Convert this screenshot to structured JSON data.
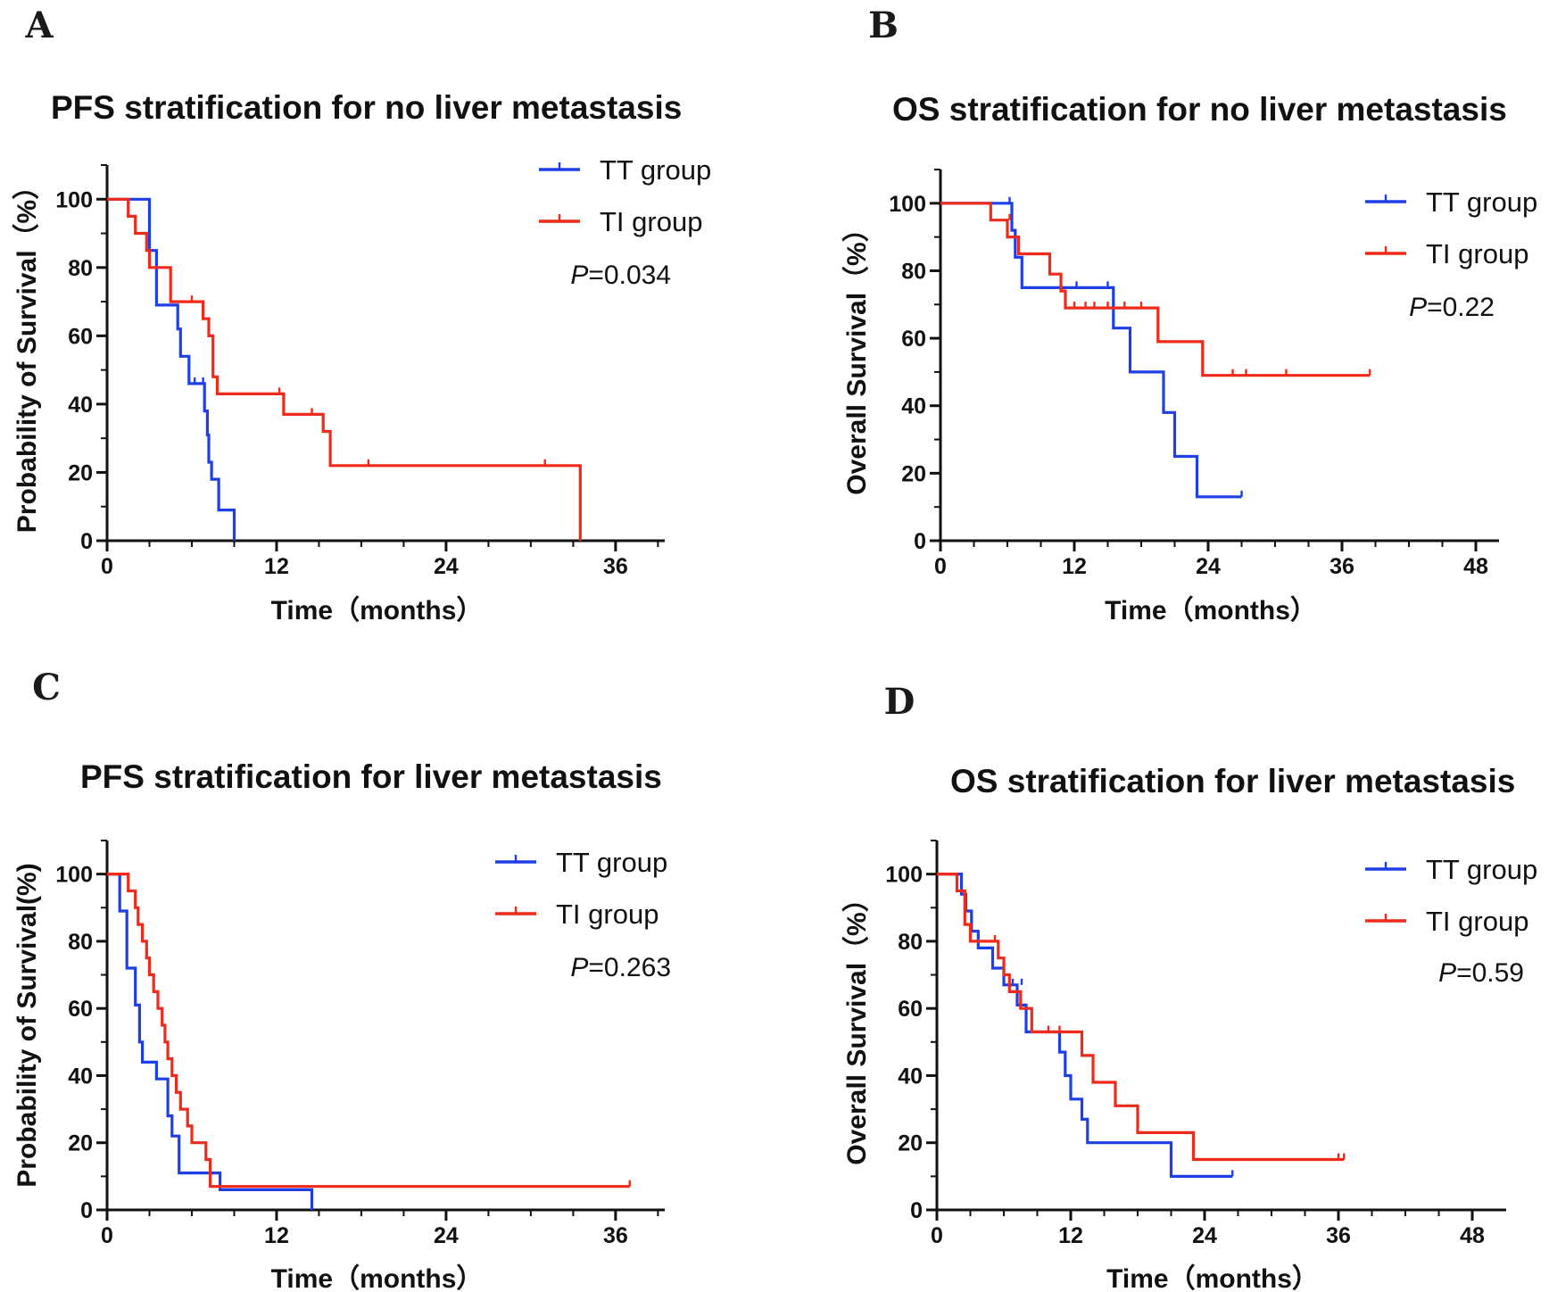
{
  "figure": {
    "panels": [
      "A",
      "B",
      "C",
      "D"
    ],
    "colors": {
      "tt": "#1f3fe6",
      "ti": "#ef2a1a",
      "axis": "#111111"
    }
  },
  "chart_data": [
    {
      "panel": "A",
      "type": "line",
      "subtype": "kaplan-meier",
      "title": "PFS stratification for no liver metastasis",
      "xlabel": "Time（months）",
      "ylabel": "Probability of Survival（%）",
      "xlim": [
        0,
        41
      ],
      "ylim": [
        0,
        110
      ],
      "xticks": [
        "0",
        "12",
        "24",
        "36"
      ],
      "yticks": [
        "0",
        "20",
        "40",
        "60",
        "80",
        "100"
      ],
      "p_label": "P",
      "p_value": "=0.034",
      "series": [
        {
          "name": "TT group",
          "color": "#1f3fe6",
          "steps": [
            [
              0,
              100
            ],
            [
              3,
              100
            ],
            [
              3,
              85
            ],
            [
              3.5,
              85
            ],
            [
              3.5,
              69
            ],
            [
              5,
              69
            ],
            [
              5,
              62
            ],
            [
              5.2,
              62
            ],
            [
              5.2,
              54
            ],
            [
              5.8,
              54
            ],
            [
              5.8,
              46
            ],
            [
              6.9,
              46
            ],
            [
              6.9,
              38
            ],
            [
              7.1,
              38
            ],
            [
              7.1,
              31
            ],
            [
              7.2,
              31
            ],
            [
              7.2,
              23
            ],
            [
              7.4,
              23
            ],
            [
              7.4,
              18
            ],
            [
              7.9,
              18
            ],
            [
              7.9,
              9
            ],
            [
              9,
              9
            ],
            [
              9,
              0
            ]
          ],
          "censors": [
            [
              6.2,
              46
            ],
            [
              6.8,
              46
            ]
          ]
        },
        {
          "name": "TI group",
          "color": "#ef2a1a",
          "steps": [
            [
              0,
              100
            ],
            [
              1.5,
              100
            ],
            [
              1.5,
              95
            ],
            [
              2,
              95
            ],
            [
              2,
              90
            ],
            [
              2.8,
              90
            ],
            [
              2.8,
              85
            ],
            [
              3,
              85
            ],
            [
              3,
              80
            ],
            [
              4.5,
              80
            ],
            [
              4.5,
              70
            ],
            [
              6.8,
              70
            ],
            [
              6.8,
              65
            ],
            [
              7.2,
              65
            ],
            [
              7.2,
              60
            ],
            [
              7.5,
              60
            ],
            [
              7.5,
              48
            ],
            [
              7.8,
              48
            ],
            [
              7.8,
              43
            ],
            [
              12.5,
              43
            ],
            [
              12.5,
              37
            ],
            [
              15.3,
              37
            ],
            [
              15.3,
              32
            ],
            [
              15.8,
              32
            ],
            [
              15.8,
              22
            ],
            [
              33.5,
              22
            ],
            [
              33.5,
              0
            ]
          ],
          "censors": [
            [
              6,
              70
            ],
            [
              12.2,
              43
            ],
            [
              14.5,
              37
            ],
            [
              18.5,
              22
            ],
            [
              31,
              22
            ]
          ]
        }
      ]
    },
    {
      "panel": "B",
      "type": "line",
      "subtype": "kaplan-meier",
      "title": "OS stratification for no liver metastasis",
      "xlabel": "Time（months）",
      "ylabel": "Overall Survival（%）",
      "xlim": [
        0,
        49
      ],
      "ylim": [
        0,
        110
      ],
      "xticks": [
        "0",
        "12",
        "24",
        "36",
        "48"
      ],
      "yticks": [
        "0",
        "20",
        "40",
        "60",
        "80",
        "100"
      ],
      "p_label": "P",
      "p_value": "=0.22",
      "series": [
        {
          "name": "TT group",
          "color": "#1f3fe6",
          "steps": [
            [
              0,
              100
            ],
            [
              6.4,
              100
            ],
            [
              6.4,
              92
            ],
            [
              6.7,
              92
            ],
            [
              6.7,
              84
            ],
            [
              7.3,
              84
            ],
            [
              7.3,
              75
            ],
            [
              15.5,
              75
            ],
            [
              15.5,
              63
            ],
            [
              17,
              63
            ],
            [
              17,
              50
            ],
            [
              20,
              50
            ],
            [
              20,
              38
            ],
            [
              21,
              38
            ],
            [
              21,
              25
            ],
            [
              23,
              25
            ],
            [
              23,
              13
            ],
            [
              27,
              13
            ]
          ],
          "censors": [
            [
              6.2,
              100
            ],
            [
              12.2,
              75
            ],
            [
              15,
              75
            ],
            [
              27,
              13
            ]
          ]
        },
        {
          "name": "TI group",
          "color": "#ef2a1a",
          "steps": [
            [
              0,
              100
            ],
            [
              4.5,
              100
            ],
            [
              4.5,
              95
            ],
            [
              6,
              95
            ],
            [
              6,
              90
            ],
            [
              7,
              90
            ],
            [
              7,
              85
            ],
            [
              9.8,
              85
            ],
            [
              9.8,
              79
            ],
            [
              10.8,
              79
            ],
            [
              10.8,
              74
            ],
            [
              11.2,
              74
            ],
            [
              11.2,
              69
            ],
            [
              19.5,
              69
            ],
            [
              19.5,
              59
            ],
            [
              23.5,
              59
            ],
            [
              23.5,
              49
            ],
            [
              38.5,
              49
            ]
          ],
          "censors": [
            [
              6.2,
              95
            ],
            [
              12,
              69
            ],
            [
              13,
              69
            ],
            [
              13.8,
              69
            ],
            [
              15,
              69
            ],
            [
              16.5,
              69
            ],
            [
              18,
              69
            ],
            [
              26.2,
              49
            ],
            [
              27.4,
              49
            ],
            [
              31,
              49
            ],
            [
              38.5,
              49
            ]
          ]
        }
      ]
    },
    {
      "panel": "C",
      "type": "line",
      "subtype": "kaplan-meier",
      "title": "PFS stratification for liver metastasis",
      "xlabel": "Time（months）",
      "ylabel": "Probability of Survival(%)",
      "xlim": [
        0,
        41
      ],
      "ylim": [
        0,
        110
      ],
      "xticks": [
        "0",
        "12",
        "24",
        "36"
      ],
      "yticks": [
        "0",
        "20",
        "40",
        "60",
        "80",
        "100"
      ],
      "p_label": "P",
      "p_value": "=0.263",
      "series": [
        {
          "name": "TT group",
          "color": "#1f3fe6",
          "steps": [
            [
              0,
              100
            ],
            [
              0.9,
              100
            ],
            [
              0.9,
              89
            ],
            [
              1.4,
              89
            ],
            [
              1.4,
              72
            ],
            [
              2,
              72
            ],
            [
              2,
              61
            ],
            [
              2.3,
              61
            ],
            [
              2.3,
              50
            ],
            [
              2.5,
              50
            ],
            [
              2.5,
              44
            ],
            [
              3.5,
              44
            ],
            [
              3.5,
              39
            ],
            [
              4.3,
              39
            ],
            [
              4.3,
              28
            ],
            [
              4.6,
              28
            ],
            [
              4.6,
              22
            ],
            [
              5.1,
              22
            ],
            [
              5.1,
              11
            ],
            [
              8,
              11
            ],
            [
              8,
              6
            ],
            [
              14.5,
              6
            ],
            [
              14.5,
              0
            ]
          ],
          "censors": []
        },
        {
          "name": "TI group",
          "color": "#ef2a1a",
          "steps": [
            [
              0,
              100
            ],
            [
              1.5,
              100
            ],
            [
              1.5,
              95
            ],
            [
              2,
              95
            ],
            [
              2,
              90
            ],
            [
              2.2,
              90
            ],
            [
              2.2,
              85
            ],
            [
              2.5,
              85
            ],
            [
              2.5,
              80
            ],
            [
              2.8,
              80
            ],
            [
              2.8,
              75
            ],
            [
              3,
              75
            ],
            [
              3,
              70
            ],
            [
              3.3,
              70
            ],
            [
              3.3,
              65
            ],
            [
              3.6,
              65
            ],
            [
              3.6,
              60
            ],
            [
              3.9,
              60
            ],
            [
              3.9,
              55
            ],
            [
              4.1,
              55
            ],
            [
              4.1,
              50
            ],
            [
              4.3,
              50
            ],
            [
              4.3,
              45
            ],
            [
              4.6,
              45
            ],
            [
              4.6,
              40
            ],
            [
              4.9,
              40
            ],
            [
              4.9,
              35
            ],
            [
              5.2,
              35
            ],
            [
              5.2,
              30
            ],
            [
              5.7,
              30
            ],
            [
              5.7,
              25
            ],
            [
              6,
              25
            ],
            [
              6,
              20
            ],
            [
              7,
              20
            ],
            [
              7,
              15
            ],
            [
              7.3,
              15
            ],
            [
              7.3,
              7
            ],
            [
              37,
              7
            ]
          ],
          "censors": [
            [
              37,
              7
            ]
          ]
        }
      ]
    },
    {
      "panel": "D",
      "type": "line",
      "subtype": "kaplan-meier",
      "title": "OS stratification for liver metastasis",
      "xlabel": "Time（months）",
      "ylabel": "Overall Survival（%）",
      "xlim": [
        0,
        49
      ],
      "ylim": [
        0,
        110
      ],
      "xticks": [
        "0",
        "12",
        "24",
        "36",
        "48"
      ],
      "yticks": [
        "0",
        "20",
        "40",
        "60",
        "80",
        "100"
      ],
      "p_label": "P",
      "p_value": "=0.59",
      "series": [
        {
          "name": "TT group",
          "color": "#1f3fe6",
          "steps": [
            [
              0,
              100
            ],
            [
              2.2,
              100
            ],
            [
              2.2,
              94
            ],
            [
              2.6,
              94
            ],
            [
              2.6,
              89
            ],
            [
              3.1,
              89
            ],
            [
              3.1,
              83
            ],
            [
              3.7,
              83
            ],
            [
              3.7,
              78
            ],
            [
              5,
              78
            ],
            [
              5,
              72
            ],
            [
              6,
              72
            ],
            [
              6,
              67
            ],
            [
              7.2,
              67
            ],
            [
              7.2,
              61
            ],
            [
              8,
              61
            ],
            [
              8,
              53
            ],
            [
              11,
              53
            ],
            [
              11,
              47
            ],
            [
              11.5,
              47
            ],
            [
              11.5,
              40
            ],
            [
              12,
              40
            ],
            [
              12,
              33
            ],
            [
              13,
              33
            ],
            [
              13,
              27
            ],
            [
              13.5,
              27
            ],
            [
              13.5,
              20
            ],
            [
              21,
              20
            ],
            [
              21,
              10
            ],
            [
              26.5,
              10
            ]
          ],
          "censors": [
            [
              6.8,
              67
            ],
            [
              7.6,
              67
            ],
            [
              26.5,
              10
            ]
          ]
        },
        {
          "name": "TI group",
          "color": "#ef2a1a",
          "steps": [
            [
              0,
              100
            ],
            [
              1.8,
              100
            ],
            [
              1.8,
              95
            ],
            [
              2.5,
              95
            ],
            [
              2.5,
              85
            ],
            [
              3,
              85
            ],
            [
              3,
              80
            ],
            [
              5.5,
              80
            ],
            [
              5.5,
              75
            ],
            [
              6,
              75
            ],
            [
              6,
              70
            ],
            [
              6.5,
              70
            ],
            [
              6.5,
              65
            ],
            [
              7.5,
              65
            ],
            [
              7.5,
              60
            ],
            [
              8.5,
              60
            ],
            [
              8.5,
              53
            ],
            [
              13,
              53
            ],
            [
              13,
              46
            ],
            [
              14,
              46
            ],
            [
              14,
              38
            ],
            [
              16,
              38
            ],
            [
              16,
              31
            ],
            [
              18,
              31
            ],
            [
              18,
              23
            ],
            [
              23,
              23
            ],
            [
              23,
              15
            ],
            [
              36.5,
              15
            ]
          ],
          "censors": [
            [
              5.2,
              80
            ],
            [
              10,
              53
            ],
            [
              11,
              53
            ],
            [
              36,
              15
            ],
            [
              36.5,
              15
            ]
          ]
        }
      ]
    }
  ]
}
